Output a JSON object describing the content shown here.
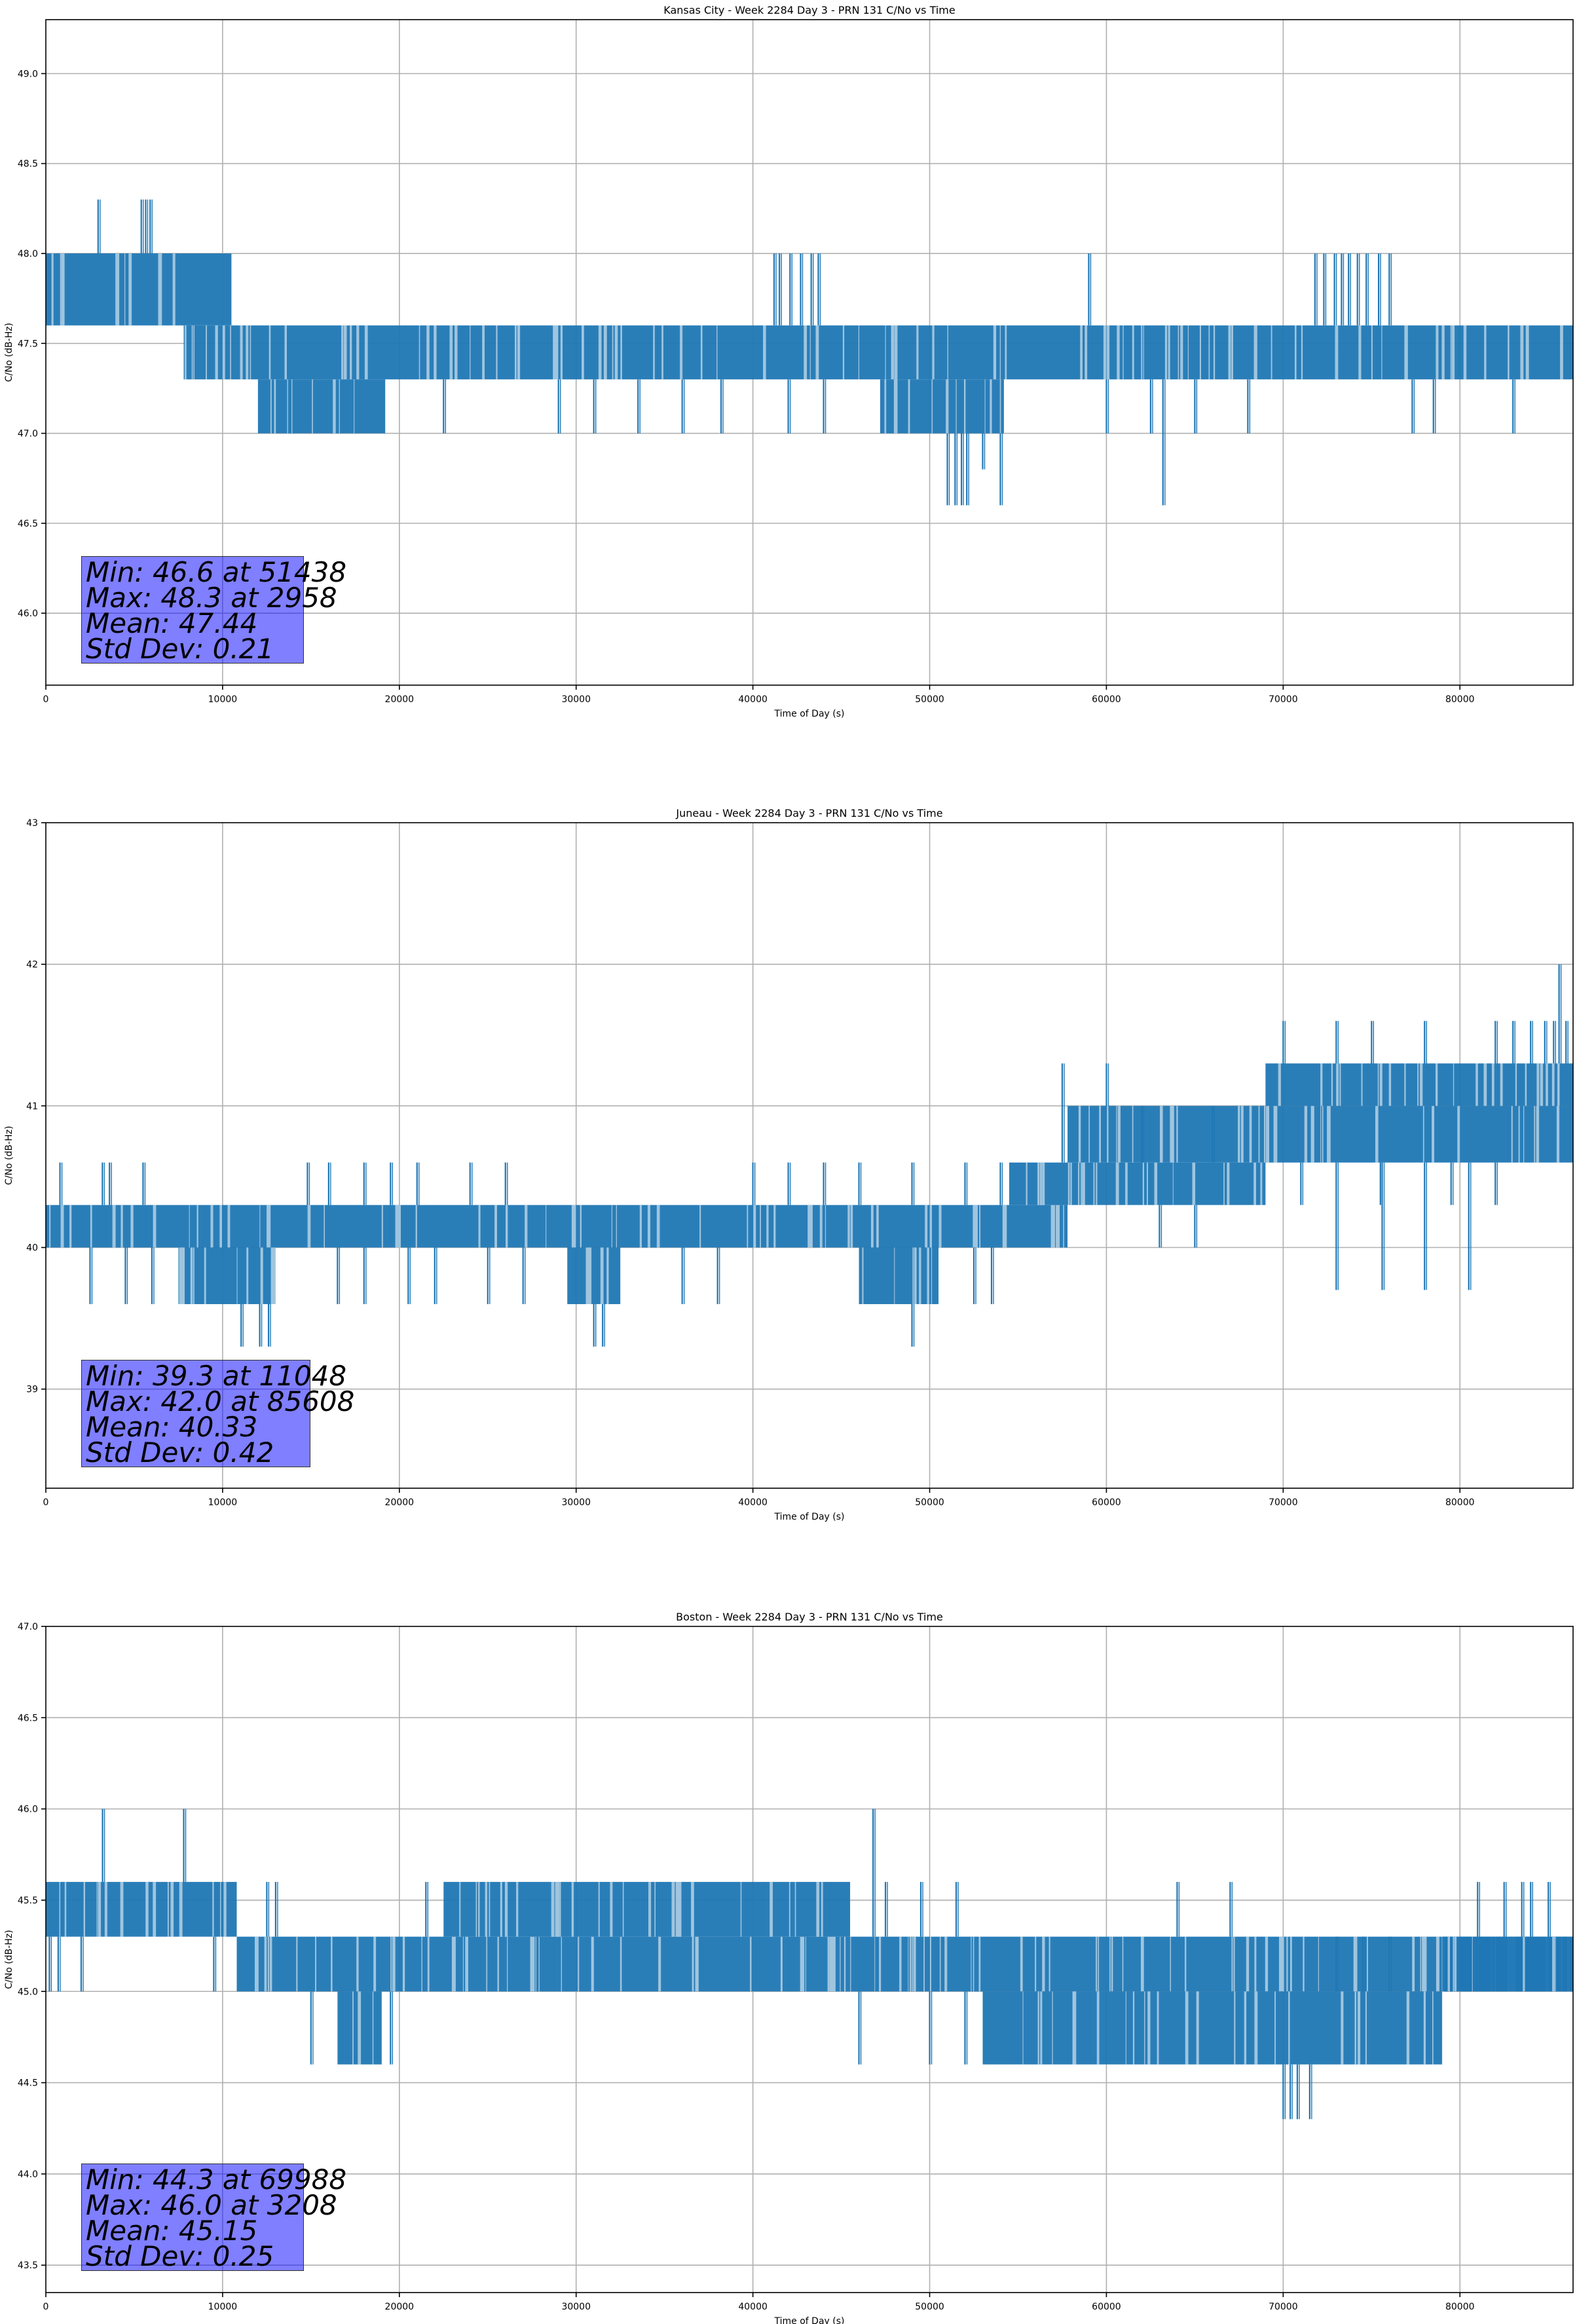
{
  "chart_data": [
    {
      "type": "line",
      "title": "Kansas City - Week 2284 Day 3 - PRN 131 C/No vs Time",
      "xlabel": "Time of Day (s)",
      "ylabel": "C/No (dB-Hz)",
      "xlim": [
        0,
        86400
      ],
      "ylim": [
        45.6,
        49.3
      ],
      "xticks": [
        0,
        10000,
        20000,
        30000,
        40000,
        50000,
        60000,
        70000,
        80000
      ],
      "yticks": [
        46.0,
        46.5,
        47.0,
        47.5,
        48.0,
        48.5,
        49.0
      ],
      "ytick_labels": [
        "46.0",
        "46.5",
        "47.0",
        "47.5",
        "48.0",
        "48.5",
        "49.0"
      ],
      "grid": true,
      "series_color": "#1f77b4",
      "bands": [
        {
          "x": [
            0,
            10500
          ],
          "y": [
            47.6,
            48.0
          ]
        },
        {
          "x": [
            7800,
            86400
          ],
          "y": [
            47.3,
            47.6
          ]
        },
        {
          "x": [
            12000,
            19200
          ],
          "y": [
            47.0,
            47.3
          ]
        },
        {
          "x": [
            47200,
            54200
          ],
          "y": [
            47.0,
            47.3
          ]
        }
      ],
      "spikes": [
        {
          "x": 2958,
          "y": 48.3
        },
        {
          "x": 5400,
          "y": 48.3
        },
        {
          "x": 5650,
          "y": 48.3
        },
        {
          "x": 5900,
          "y": 48.3
        },
        {
          "x": 41200,
          "y": 48.0
        },
        {
          "x": 41500,
          "y": 48.0
        },
        {
          "x": 42100,
          "y": 48.0
        },
        {
          "x": 42700,
          "y": 48.0
        },
        {
          "x": 43300,
          "y": 48.0
        },
        {
          "x": 43700,
          "y": 48.0
        },
        {
          "x": 59000,
          "y": 48.0
        },
        {
          "x": 71800,
          "y": 48.0
        },
        {
          "x": 72300,
          "y": 48.0
        },
        {
          "x": 72900,
          "y": 48.0
        },
        {
          "x": 73300,
          "y": 48.0
        },
        {
          "x": 73700,
          "y": 48.0
        },
        {
          "x": 74200,
          "y": 48.0
        },
        {
          "x": 74700,
          "y": 48.0
        },
        {
          "x": 75400,
          "y": 48.0
        },
        {
          "x": 76000,
          "y": 48.0
        },
        {
          "x": 22500,
          "y": 47.0
        },
        {
          "x": 29000,
          "y": 47.0
        },
        {
          "x": 31000,
          "y": 47.0
        },
        {
          "x": 33500,
          "y": 47.0
        },
        {
          "x": 36000,
          "y": 47.0
        },
        {
          "x": 38200,
          "y": 47.0
        },
        {
          "x": 42000,
          "y": 47.0
        },
        {
          "x": 44000,
          "y": 47.0
        },
        {
          "x": 60000,
          "y": 47.0
        },
        {
          "x": 62500,
          "y": 47.0
        },
        {
          "x": 65000,
          "y": 47.0
        },
        {
          "x": 68000,
          "y": 47.0
        },
        {
          "x": 77300,
          "y": 47.0
        },
        {
          "x": 78500,
          "y": 47.0
        },
        {
          "x": 83000,
          "y": 47.0
        },
        {
          "x": 51000,
          "y": 46.6
        },
        {
          "x": 51438,
          "y": 46.6
        },
        {
          "x": 51800,
          "y": 46.6
        },
        {
          "x": 52100,
          "y": 46.6
        },
        {
          "x": 54000,
          "y": 46.6
        },
        {
          "x": 63200,
          "y": 46.6
        },
        {
          "x": 53000,
          "y": 46.8
        }
      ],
      "stats": [
        "Min: 46.6 at 51438",
        "Max: 48.3 at 2958",
        "Mean: 47.44",
        "Std Dev: 0.21"
      ]
    },
    {
      "type": "line",
      "title": "Juneau - Week 2284 Day 3 - PRN 131 C/No vs Time",
      "xlabel": "Time of Day (s)",
      "ylabel": "C/No (dB-Hz)",
      "xlim": [
        0,
        86400
      ],
      "ylim": [
        38.3,
        43.0
      ],
      "xticks": [
        0,
        10000,
        20000,
        30000,
        40000,
        50000,
        60000,
        70000,
        80000
      ],
      "yticks": [
        39,
        40,
        41,
        42,
        43
      ],
      "ytick_labels": [
        "39",
        "40",
        "41",
        "42",
        "43"
      ],
      "grid": true,
      "series_color": "#1f77b4",
      "bands": [
        {
          "x": [
            0,
            57800
          ],
          "y": [
            40.0,
            40.3
          ]
        },
        {
          "x": [
            7500,
            13000
          ],
          "y": [
            39.6,
            40.0
          ]
        },
        {
          "x": [
            29500,
            32500
          ],
          "y": [
            39.6,
            40.0
          ]
        },
        {
          "x": [
            46000,
            50500
          ],
          "y": [
            39.6,
            40.0
          ]
        },
        {
          "x": [
            54500,
            69000
          ],
          "y": [
            40.3,
            40.6
          ]
        },
        {
          "x": [
            57800,
            69000
          ],
          "y": [
            40.6,
            41.0
          ]
        },
        {
          "x": [
            69000,
            86400
          ],
          "y": [
            40.6,
            41.0
          ]
        },
        {
          "x": [
            69000,
            86400
          ],
          "y": [
            41.0,
            41.3
          ]
        }
      ],
      "spikes": [
        {
          "x": 800,
          "y": 40.6
        },
        {
          "x": 3200,
          "y": 40.6
        },
        {
          "x": 3600,
          "y": 40.6
        },
        {
          "x": 5500,
          "y": 40.6
        },
        {
          "x": 14800,
          "y": 40.6
        },
        {
          "x": 16000,
          "y": 40.6
        },
        {
          "x": 18000,
          "y": 40.6
        },
        {
          "x": 19500,
          "y": 40.6
        },
        {
          "x": 21000,
          "y": 40.6
        },
        {
          "x": 24000,
          "y": 40.6
        },
        {
          "x": 26000,
          "y": 40.6
        },
        {
          "x": 40000,
          "y": 40.6
        },
        {
          "x": 42000,
          "y": 40.6
        },
        {
          "x": 44000,
          "y": 40.6
        },
        {
          "x": 46000,
          "y": 40.6
        },
        {
          "x": 49000,
          "y": 40.6
        },
        {
          "x": 52000,
          "y": 40.6
        },
        {
          "x": 54000,
          "y": 40.6
        },
        {
          "x": 2500,
          "y": 39.6
        },
        {
          "x": 4500,
          "y": 39.6
        },
        {
          "x": 6000,
          "y": 39.6
        },
        {
          "x": 16500,
          "y": 39.6
        },
        {
          "x": 18000,
          "y": 39.6
        },
        {
          "x": 20500,
          "y": 39.6
        },
        {
          "x": 22000,
          "y": 39.6
        },
        {
          "x": 25000,
          "y": 39.6
        },
        {
          "x": 27000,
          "y": 39.6
        },
        {
          "x": 36000,
          "y": 39.6
        },
        {
          "x": 38000,
          "y": 39.6
        },
        {
          "x": 52500,
          "y": 39.6
        },
        {
          "x": 53500,
          "y": 39.6
        },
        {
          "x": 11048,
          "y": 39.3
        },
        {
          "x": 12100,
          "y": 39.3
        },
        {
          "x": 12600,
          "y": 39.3
        },
        {
          "x": 31000,
          "y": 39.3
        },
        {
          "x": 31500,
          "y": 39.3
        },
        {
          "x": 49000,
          "y": 39.3
        },
        {
          "x": 57500,
          "y": 41.3
        },
        {
          "x": 60000,
          "y": 41.3
        },
        {
          "x": 62000,
          "y": 41.0
        },
        {
          "x": 66000,
          "y": 41.0
        },
        {
          "x": 70000,
          "y": 41.6
        },
        {
          "x": 73000,
          "y": 41.6
        },
        {
          "x": 75000,
          "y": 41.6
        },
        {
          "x": 78000,
          "y": 41.6
        },
        {
          "x": 82000,
          "y": 41.6
        },
        {
          "x": 83000,
          "y": 41.6
        },
        {
          "x": 84000,
          "y": 41.6
        },
        {
          "x": 84800,
          "y": 41.6
        },
        {
          "x": 85300,
          "y": 41.6
        },
        {
          "x": 85608,
          "y": 42.0
        },
        {
          "x": 86000,
          "y": 41.6
        },
        {
          "x": 63000,
          "y": 40.0
        },
        {
          "x": 65000,
          "y": 40.0
        },
        {
          "x": 71000,
          "y": 40.3
        },
        {
          "x": 75500,
          "y": 40.3
        },
        {
          "x": 79500,
          "y": 40.3
        },
        {
          "x": 82000,
          "y": 40.3
        },
        {
          "x": 73000,
          "y": 39.7
        },
        {
          "x": 75600,
          "y": 39.7
        },
        {
          "x": 78000,
          "y": 39.7
        },
        {
          "x": 80500,
          "y": 39.7
        }
      ],
      "stats": [
        "Min: 39.3 at 11048",
        "Max: 42.0 at 85608",
        "Mean: 40.33",
        "Std Dev: 0.42"
      ]
    },
    {
      "type": "line",
      "title": "Boston - Week 2284 Day 3 - PRN 131 C/No vs Time",
      "xlabel": "Time of Day (s)",
      "ylabel": "C/No (dB-Hz)",
      "xlim": [
        0,
        86400
      ],
      "ylim": [
        43.35,
        47.0
      ],
      "xticks": [
        0,
        10000,
        20000,
        30000,
        40000,
        50000,
        60000,
        70000,
        80000
      ],
      "yticks": [
        43.5,
        44.0,
        44.5,
        45.0,
        45.5,
        46.0,
        46.5,
        47.0
      ],
      "ytick_labels": [
        "43.5",
        "44.0",
        "44.5",
        "45.0",
        "45.5",
        "46.0",
        "46.5",
        "47.0"
      ],
      "grid": true,
      "series_color": "#1f77b4",
      "bands": [
        {
          "x": [
            0,
            10800
          ],
          "y": [
            45.3,
            45.6
          ]
        },
        {
          "x": [
            10800,
            86400
          ],
          "y": [
            45.0,
            45.3
          ]
        },
        {
          "x": [
            22500,
            45500
          ],
          "y": [
            45.3,
            45.6
          ]
        },
        {
          "x": [
            16500,
            19000
          ],
          "y": [
            44.6,
            45.0
          ]
        },
        {
          "x": [
            53000,
            79000
          ],
          "y": [
            44.6,
            45.0
          ]
        },
        {
          "x": [
            79000,
            86400
          ],
          "y": [
            45.0,
            45.3
          ]
        }
      ],
      "spikes": [
        {
          "x": 3208,
          "y": 46.0
        },
        {
          "x": 7800,
          "y": 46.0
        },
        {
          "x": 46800,
          "y": 46.0
        },
        {
          "x": 12500,
          "y": 45.6
        },
        {
          "x": 13000,
          "y": 45.6
        },
        {
          "x": 21500,
          "y": 45.6
        },
        {
          "x": 47500,
          "y": 45.6
        },
        {
          "x": 49500,
          "y": 45.6
        },
        {
          "x": 51500,
          "y": 45.6
        },
        {
          "x": 64000,
          "y": 45.6
        },
        {
          "x": 67000,
          "y": 45.6
        },
        {
          "x": 81000,
          "y": 45.6
        },
        {
          "x": 82500,
          "y": 45.6
        },
        {
          "x": 83500,
          "y": 45.6
        },
        {
          "x": 84000,
          "y": 45.6
        },
        {
          "x": 85000,
          "y": 45.6
        },
        {
          "x": 200,
          "y": 45.0
        },
        {
          "x": 700,
          "y": 45.0
        },
        {
          "x": 2000,
          "y": 45.0
        },
        {
          "x": 9500,
          "y": 45.0
        },
        {
          "x": 15000,
          "y": 44.6
        },
        {
          "x": 19500,
          "y": 44.6
        },
        {
          "x": 46000,
          "y": 44.6
        },
        {
          "x": 50000,
          "y": 44.6
        },
        {
          "x": 52000,
          "y": 44.6
        },
        {
          "x": 70000,
          "y": 44.3
        },
        {
          "x": 70400,
          "y": 44.3
        },
        {
          "x": 70800,
          "y": 44.3
        },
        {
          "x": 71500,
          "y": 44.3
        },
        {
          "x": 73000,
          "y": 45.3
        },
        {
          "x": 74500,
          "y": 45.3
        },
        {
          "x": 76000,
          "y": 45.3
        }
      ],
      "stats": [
        "Min: 44.3 at 69988",
        "Max: 46.0 at 3208",
        "Mean: 45.15",
        "Std Dev: 0.25"
      ]
    }
  ]
}
